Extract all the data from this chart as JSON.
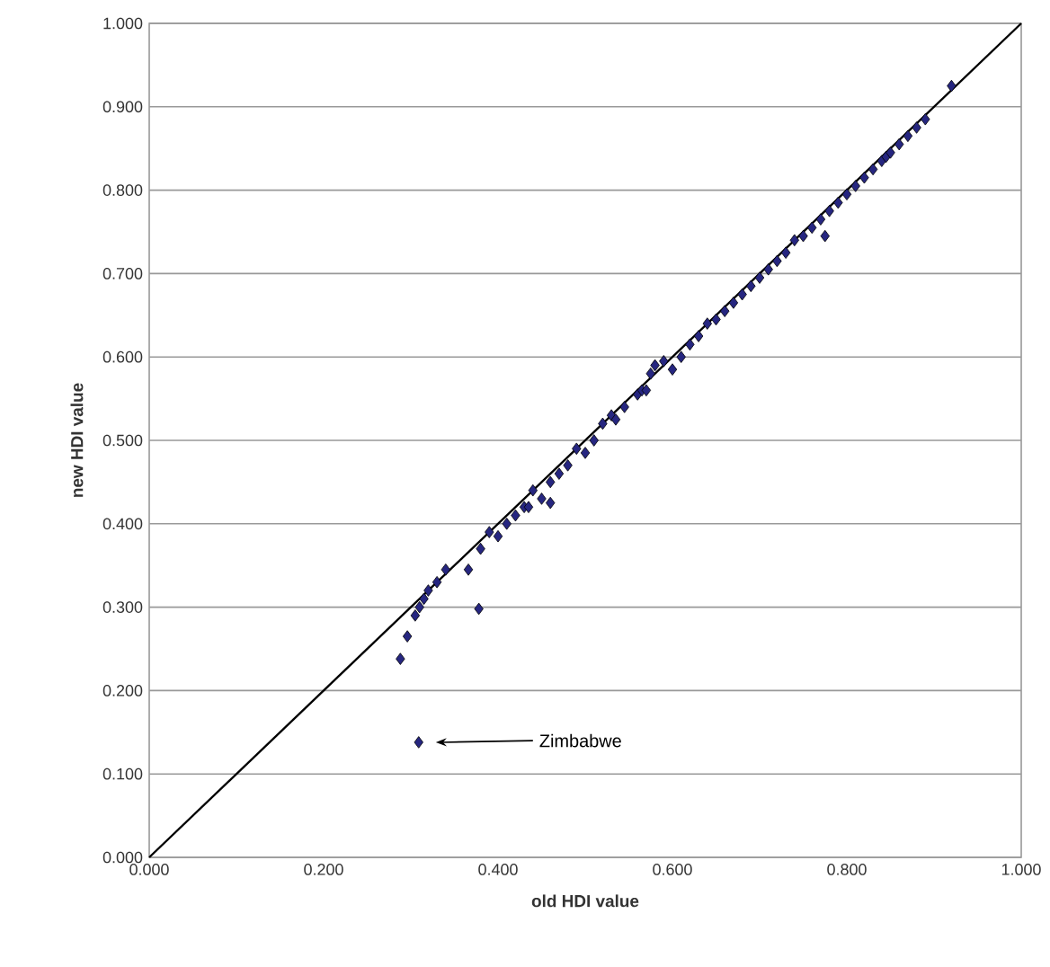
{
  "chart_data": {
    "type": "scatter",
    "xlabel": "old HDI value",
    "ylabel": "new HDI value",
    "xlim": [
      0,
      1
    ],
    "ylim": [
      0,
      1
    ],
    "xticks": [
      {
        "value": 0,
        "label": "0.000"
      },
      {
        "value": 0.2,
        "label": "0.200"
      },
      {
        "value": 0.4,
        "label": "0.400"
      },
      {
        "value": 0.6,
        "label": "0.600"
      },
      {
        "value": 0.8,
        "label": "0.800"
      },
      {
        "value": 1,
        "label": "1.000"
      }
    ],
    "yticks": [
      {
        "value": 0,
        "label": "0.000"
      },
      {
        "value": 0.1,
        "label": "0.100"
      },
      {
        "value": 0.2,
        "label": "0.200"
      },
      {
        "value": 0.3,
        "label": "0.300"
      },
      {
        "value": 0.4,
        "label": "0.400"
      },
      {
        "value": 0.5,
        "label": "0.500"
      },
      {
        "value": 0.6,
        "label": "0.600"
      },
      {
        "value": 0.7,
        "label": "0.700"
      },
      {
        "value": 0.8,
        "label": "0.800"
      },
      {
        "value": 0.9,
        "label": "0.900"
      },
      {
        "value": 1,
        "label": "1.000"
      }
    ],
    "grid": "y",
    "marker": "diamond",
    "series": [
      {
        "type": "line",
        "color": "#000000",
        "marker": "none",
        "x": [
          0,
          1
        ],
        "values": [
          0,
          1
        ]
      },
      {
        "type": "scatter",
        "color": "#262680",
        "x": [
          0.309,
          0.288,
          0.296,
          0.305,
          0.31,
          0.315,
          0.32,
          0.33,
          0.34,
          0.366,
          0.378,
          0.38,
          0.39,
          0.4,
          0.41,
          0.42,
          0.43,
          0.435,
          0.44,
          0.45,
          0.46,
          0.46,
          0.47,
          0.48,
          0.49,
          0.5,
          0.51,
          0.52,
          0.53,
          0.535,
          0.545,
          0.56,
          0.565,
          0.57,
          0.575,
          0.58,
          0.59,
          0.6,
          0.61,
          0.62,
          0.63,
          0.64,
          0.65,
          0.66,
          0.67,
          0.68,
          0.69,
          0.7,
          0.71,
          0.72,
          0.73,
          0.74,
          0.75,
          0.76,
          0.77,
          0.775,
          0.78,
          0.79,
          0.8,
          0.81,
          0.82,
          0.83,
          0.84,
          0.845,
          0.85,
          0.86,
          0.87,
          0.88,
          0.89,
          0.92
        ],
        "values": [
          0.138,
          0.238,
          0.265,
          0.29,
          0.3,
          0.31,
          0.32,
          0.33,
          0.345,
          0.345,
          0.298,
          0.37,
          0.39,
          0.385,
          0.4,
          0.41,
          0.42,
          0.42,
          0.44,
          0.43,
          0.45,
          0.425,
          0.46,
          0.47,
          0.49,
          0.485,
          0.5,
          0.52,
          0.53,
          0.525,
          0.54,
          0.555,
          0.56,
          0.56,
          0.58,
          0.59,
          0.595,
          0.585,
          0.6,
          0.615,
          0.625,
          0.64,
          0.645,
          0.655,
          0.665,
          0.675,
          0.685,
          0.695,
          0.705,
          0.715,
          0.725,
          0.74,
          0.745,
          0.755,
          0.765,
          0.745,
          0.775,
          0.785,
          0.795,
          0.805,
          0.815,
          0.825,
          0.835,
          0.84,
          0.845,
          0.855,
          0.865,
          0.875,
          0.885,
          0.925
        ]
      }
    ],
    "annotations": [
      "Zimbabwe"
    ]
  }
}
